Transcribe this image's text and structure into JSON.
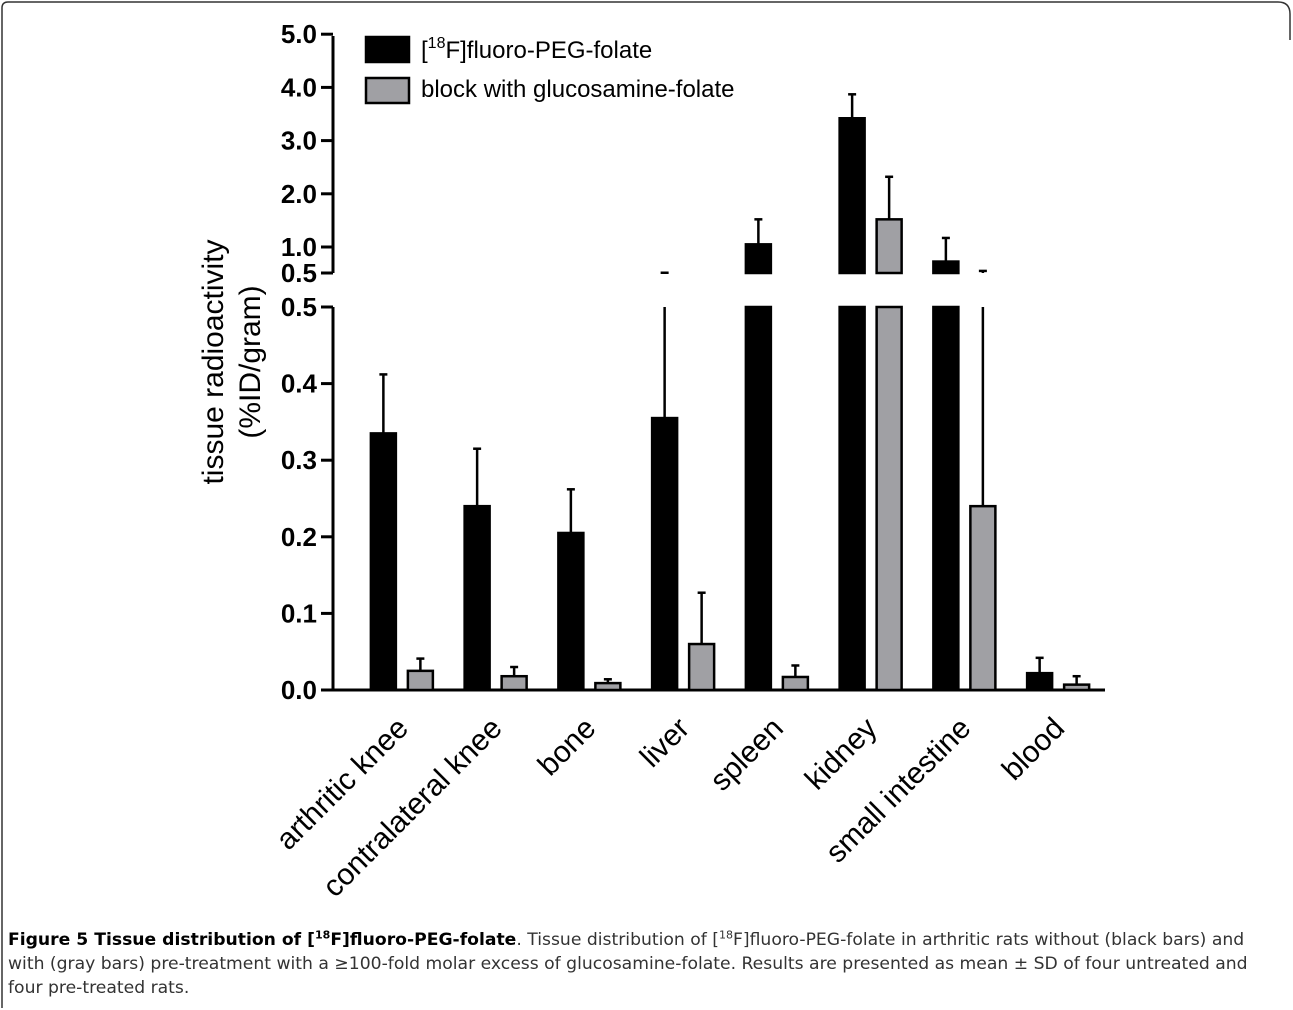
{
  "chart_data": {
    "type": "bar",
    "ylabel_line1": "tissue radioactivity",
    "ylabel_line2": "(%ID/gram)",
    "y_axis": "broken",
    "lower_segment": {
      "ylim": [
        0,
        0.5
      ],
      "ticks": [
        "0.0",
        "0.1",
        "0.2",
        "0.3",
        "0.4",
        "0.5"
      ]
    },
    "upper_segment": {
      "ylim": [
        0.5,
        5.0
      ],
      "ticks": [
        "0.5",
        "1.0",
        "2.0",
        "3.0",
        "4.0",
        "5.0"
      ]
    },
    "categories": [
      "arthritic knee",
      "contralateral knee",
      "bone",
      "liver",
      "spleen",
      "kidney",
      "small intestine",
      "blood"
    ],
    "series": [
      {
        "legend_prefix": "[",
        "legend_sup": "18",
        "legend_suffix": "F]fluoro-PEG-folate",
        "color": "#000000",
        "values": [
          0.335,
          0.24,
          0.205,
          0.355,
          1.05,
          3.42,
          0.72,
          0.022
        ],
        "sd": [
          0.077,
          0.075,
          0.057,
          0.15,
          0.47,
          0.45,
          0.45,
          0.02
        ]
      },
      {
        "legend": "block with glucosamine-folate",
        "color": "#a0a0a4",
        "values": [
          0.025,
          0.018,
          0.009,
          0.06,
          0.017,
          1.52,
          0.24,
          0.007
        ],
        "sd": [
          0.016,
          0.012,
          0.005,
          0.067,
          0.015,
          0.8,
          0.3,
          0.011
        ]
      }
    ],
    "legend_position": "top-left",
    "grid": false
  },
  "caption": {
    "title_prefix": "Figure 5 Tissue distribution of [",
    "title_sup": "18",
    "title_suffix": "F]fluoro-PEG-folate",
    "body_part1": ". Tissue distribution of [",
    "body_sup": "18",
    "body_part2": "F]fluoro-PEG-folate in arthritic rats without (black bars) and with (gray bars) pre-treatment with a ≥100-fold molar excess of glucosamine-folate. Results are presented as mean ± SD of four untreated and four pre-treated rats."
  },
  "colors": {
    "border": "#333333",
    "black_bar": "#000000",
    "gray_bar": "#a0a0a4"
  }
}
